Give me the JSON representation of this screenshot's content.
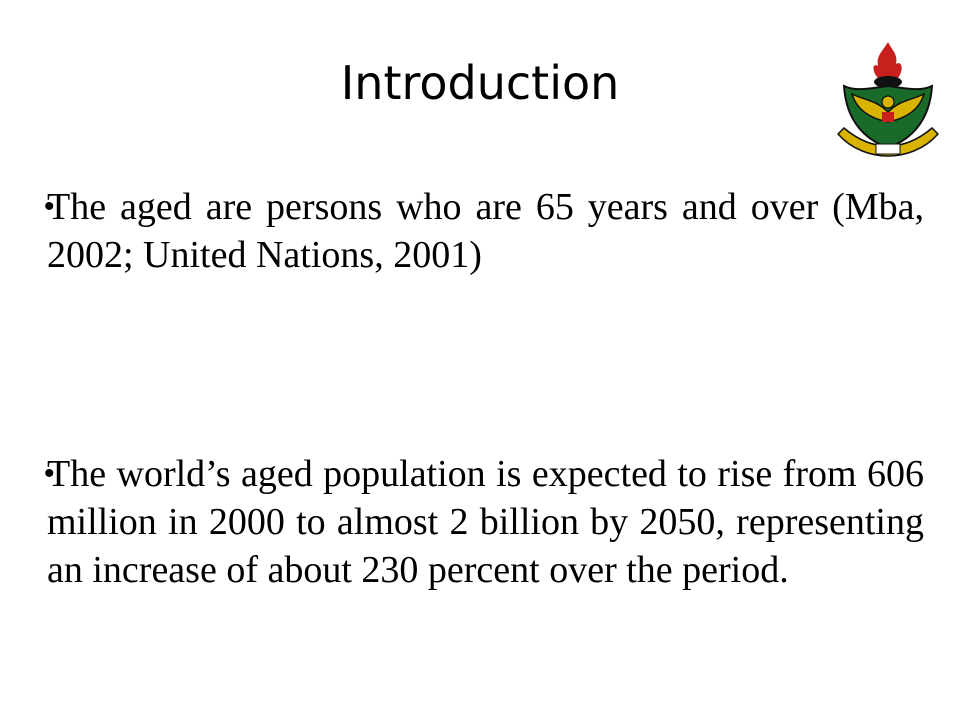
{
  "slide": {
    "title": "Introduction",
    "logo": {
      "icon": "university-crest-icon",
      "colors": {
        "green": "#1a6b2a",
        "gold": "#d9b300",
        "red": "#c8201c",
        "black": "#111111"
      }
    },
    "bullets": [
      {
        "symbol": "•",
        "text": "The aged are persons who are 65 years and over (Mba, 2002; United Nations, 2001)"
      },
      {
        "symbol": "•",
        "text": "The world’s aged population is expected to rise from 606 million in 2000 to almost 2 billion by 2050, representing an increase of about 230 percent over the period."
      }
    ]
  }
}
